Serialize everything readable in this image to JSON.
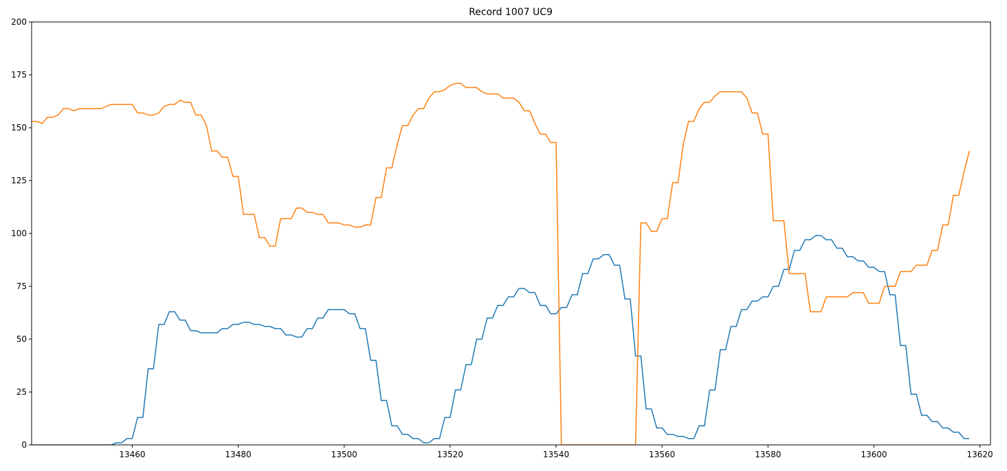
{
  "chart_data": {
    "type": "line",
    "title": "Record 1007 UC9",
    "x": [
      13441,
      13442,
      13443,
      13444,
      13445,
      13446,
      13447,
      13448,
      13449,
      13450,
      13451,
      13452,
      13453,
      13454,
      13455,
      13456,
      13457,
      13458,
      13459,
      13460,
      13461,
      13462,
      13463,
      13464,
      13465,
      13466,
      13467,
      13468,
      13469,
      13470,
      13471,
      13472,
      13473,
      13474,
      13475,
      13476,
      13477,
      13478,
      13479,
      13480,
      13481,
      13482,
      13483,
      13484,
      13485,
      13486,
      13487,
      13488,
      13489,
      13490,
      13491,
      13492,
      13493,
      13494,
      13495,
      13496,
      13497,
      13498,
      13499,
      13500,
      13501,
      13502,
      13503,
      13504,
      13505,
      13506,
      13507,
      13508,
      13509,
      13510,
      13511,
      13512,
      13513,
      13514,
      13515,
      13516,
      13517,
      13518,
      13519,
      13520,
      13521,
      13522,
      13523,
      13524,
      13525,
      13526,
      13527,
      13528,
      13529,
      13530,
      13531,
      13532,
      13533,
      13534,
      13535,
      13536,
      13537,
      13538,
      13539,
      13540,
      13541,
      13542,
      13543,
      13544,
      13545,
      13546,
      13547,
      13548,
      13549,
      13550,
      13551,
      13552,
      13553,
      13554,
      13555,
      13556,
      13557,
      13558,
      13559,
      13560,
      13561,
      13562,
      13563,
      13564,
      13565,
      13566,
      13567,
      13568,
      13569,
      13570,
      13571,
      13572,
      13573,
      13574,
      13575,
      13576,
      13577,
      13578,
      13579,
      13580,
      13581,
      13582,
      13583,
      13584,
      13585,
      13586,
      13587,
      13588,
      13589,
      13590,
      13591,
      13592,
      13593,
      13594,
      13595,
      13596,
      13597,
      13598,
      13599,
      13600,
      13601,
      13602,
      13603,
      13604,
      13605,
      13606,
      13607,
      13608,
      13609,
      13610,
      13611,
      13612,
      13613,
      13614,
      13615,
      13616,
      13617,
      13618
    ],
    "series": [
      {
        "color": "#1f77b4",
        "values": [
          0,
          0,
          0,
          0,
          0,
          0,
          0,
          0,
          0,
          0,
          0,
          0,
          0,
          0,
          0,
          0,
          1,
          1,
          3,
          3,
          13,
          13,
          36,
          36,
          57,
          57,
          63,
          63,
          59,
          59,
          54,
          54,
          53,
          53,
          53,
          53,
          55,
          55,
          57,
          57,
          58,
          58,
          57,
          57,
          56,
          56,
          55,
          55,
          52,
          52,
          51,
          51,
          55,
          55,
          60,
          60,
          64,
          64,
          64,
          64,
          62,
          62,
          55,
          55,
          40,
          40,
          21,
          21,
          9,
          9,
          5,
          5,
          3,
          3,
          1,
          1,
          3,
          3,
          13,
          13,
          26,
          26,
          38,
          38,
          50,
          50,
          60,
          60,
          66,
          66,
          70,
          70,
          74,
          74,
          72,
          72,
          66,
          66,
          62,
          62,
          65,
          65,
          71,
          71,
          81,
          81,
          88,
          88,
          90,
          90,
          85,
          85,
          69,
          69,
          42,
          42,
          17,
          17,
          8,
          8,
          5,
          5,
          4,
          4,
          3,
          3,
          9,
          9,
          26,
          26,
          45,
          45,
          56,
          56,
          64,
          64,
          68,
          68,
          70,
          70,
          75,
          75,
          83,
          83,
          92,
          92,
          97,
          97,
          99,
          99,
          97,
          97,
          93,
          93,
          89,
          89,
          87,
          87,
          84,
          84,
          82,
          82,
          71,
          71,
          47,
          47,
          24,
          24,
          14,
          14,
          11,
          11,
          8,
          8,
          6,
          6,
          3,
          3
        ]
      },
      {
        "color": "#ff7f0e",
        "values": [
          153,
          153,
          152,
          155,
          155,
          156,
          159,
          159,
          158,
          159,
          159,
          159,
          159,
          159,
          160,
          161,
          161,
          161,
          161,
          161,
          157,
          157,
          156,
          156,
          157,
          160,
          161,
          161,
          163,
          162,
          162,
          156,
          156,
          151,
          139,
          139,
          136,
          136,
          127,
          127,
          109,
          109,
          109,
          98,
          98,
          94,
          94,
          107,
          107,
          107,
          112,
          112,
          110,
          110,
          109,
          109,
          105,
          105,
          105,
          104,
          104,
          103,
          103,
          104,
          104,
          117,
          117,
          131,
          131,
          142,
          151,
          151,
          156,
          159,
          159,
          164,
          167,
          167,
          168,
          170,
          171,
          171,
          169,
          169,
          169,
          167,
          166,
          166,
          166,
          164,
          164,
          164,
          162,
          158,
          158,
          152,
          147,
          147,
          143,
          143,
          0,
          0,
          0,
          0,
          0,
          0,
          0,
          0,
          0,
          0,
          0,
          0,
          0,
          0,
          0,
          105,
          105,
          101,
          101,
          107,
          107,
          124,
          124,
          142,
          153,
          153,
          159,
          162,
          162,
          165,
          167,
          167,
          167,
          167,
          167,
          164,
          157,
          157,
          147,
          147,
          106,
          106,
          106,
          81,
          81,
          81,
          81,
          63,
          63,
          63,
          70,
          70,
          70,
          70,
          70,
          72,
          72,
          72,
          67,
          67,
          67,
          75,
          75,
          75,
          82,
          82,
          82,
          85,
          85,
          85,
          92,
          92,
          104,
          104,
          118,
          118,
          129,
          139
        ]
      }
    ],
    "xlim": [
      13441,
      13622
    ],
    "ylim": [
      0,
      200
    ],
    "xticks": [
      13460,
      13480,
      13500,
      13520,
      13540,
      13560,
      13580,
      13600,
      13620
    ],
    "yticks": [
      0,
      25,
      50,
      75,
      100,
      125,
      150,
      175,
      200
    ]
  }
}
